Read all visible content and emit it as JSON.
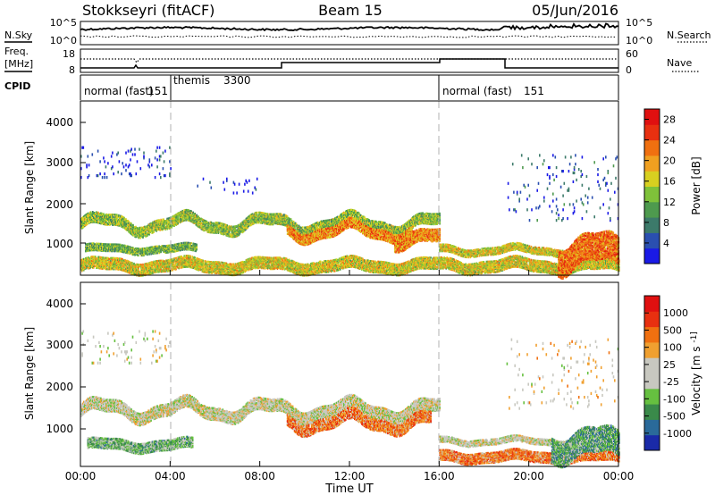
{
  "header": {
    "station": "Stokkseyri (fitACF)",
    "beam": "Beam 15",
    "date": "05/Jun/2016"
  },
  "noise_panel": {
    "left_label": "N.Sky",
    "right_label": "N.Search",
    "left_ticks": [
      "10^5",
      "10^0"
    ],
    "right_ticks": [
      "10^5",
      "10^0"
    ]
  },
  "freq_panel": {
    "left_label_1": "Freq.",
    "left_label_2": "[MHz]",
    "right_label": "Nave",
    "left_ticks": [
      "18",
      "8"
    ],
    "right_ticks": [
      "60",
      "0"
    ]
  },
  "cpid_panel": {
    "label": "CPID",
    "segments": [
      {
        "name": "normal (fast)",
        "id": "151",
        "start_hour": 0,
        "end_hour": 4
      },
      {
        "name": "themis",
        "id": "3300",
        "start_hour": 4,
        "end_hour": 16
      },
      {
        "name": "normal (fast)",
        "id": "151",
        "start_hour": 16,
        "end_hour": 24
      }
    ]
  },
  "axes": {
    "xlabel": "Time UT",
    "xticks": [
      "00:00",
      "04:00",
      "08:00",
      "12:00",
      "16:00",
      "20:00",
      "00:00"
    ],
    "ylabel": "Slant Range [km]",
    "yticks": [
      "1000",
      "2000",
      "3000",
      "4000"
    ]
  },
  "chart_data": [
    {
      "type": "heatmap",
      "title": "",
      "xlabel": "Time UT",
      "ylabel": "Slant Range [km]",
      "xlim_hours": [
        0,
        24
      ],
      "ylim": [
        180,
        4600
      ],
      "colorbar": {
        "label": "Power [dB]",
        "ticks": [
          "4",
          "8",
          "12",
          "16",
          "20",
          "24",
          "28"
        ],
        "range": [
          0,
          30
        ],
        "colors": [
          "#1a1ae6",
          "#2a4fb0",
          "#3c7a6a",
          "#4e9a4e",
          "#7fc23a",
          "#d8d020",
          "#f0a020",
          "#f07010",
          "#e83010",
          "#e01010"
        ]
      },
      "scatter_regions": [
        {
          "t0": 0.0,
          "t1": 4.0,
          "r0": 2700,
          "r1": 3500,
          "density": 0.06,
          "level": 0.1
        },
        {
          "t0": 5.0,
          "t1": 8.0,
          "r0": 2300,
          "r1": 2700,
          "density": 0.04,
          "level": 0.1
        },
        {
          "t0": 19.0,
          "t1": 24.0,
          "r0": 1600,
          "r1": 3300,
          "density": 0.03,
          "level": 0.15
        }
      ],
      "bands": [
        {
          "t0": 0.0,
          "t1": 16.0,
          "r_base": 1500,
          "width": 280,
          "wave": 180,
          "level": 0.45
        },
        {
          "t0": 0.2,
          "t1": 5.2,
          "r_base": 850,
          "width": 180,
          "wave": 60,
          "level": 0.4
        },
        {
          "t0": 0.0,
          "t1": 24.0,
          "r_base": 430,
          "width": 300,
          "wave": 90,
          "level": 0.55
        },
        {
          "t0": 9.2,
          "t1": 14.8,
          "r_base": 1300,
          "width": 250,
          "wave": 180,
          "level": 0.7
        },
        {
          "t0": 16.0,
          "t1": 21.5,
          "r_base": 820,
          "width": 180,
          "wave": 80,
          "level": 0.55
        },
        {
          "t0": 21.3,
          "t1": 24.0,
          "r_base": 750,
          "width": 700,
          "wave": 250,
          "level": 0.75
        },
        {
          "t0": 14.0,
          "t1": 16.0,
          "r_base": 1100,
          "width": 320,
          "wave": 150,
          "level": 0.7
        }
      ]
    },
    {
      "type": "heatmap",
      "title": "",
      "xlabel": "Time UT",
      "ylabel": "Slant Range [km]",
      "xlim_hours": [
        0,
        24
      ],
      "ylim": [
        180,
        4600
      ],
      "colorbar": {
        "label": "Velocity [m s^-1]",
        "ticks": [
          "1000",
          "500",
          "100",
          "25",
          "-25",
          "-100",
          "-500",
          "-1000"
        ],
        "colors": [
          "#1a2aa8",
          "#2a6a9a",
          "#3a8a4a",
          "#66c040",
          "#c8c8c0",
          "#c8c8c0",
          "#f0a030",
          "#f07010",
          "#e83010",
          "#e01010"
        ]
      },
      "scatter_regions": [
        {
          "t0": 0.0,
          "t1": 4.0,
          "r0": 2700,
          "r1": 3500,
          "density": 0.05,
          "level": 0.5
        },
        {
          "t0": 19.0,
          "t1": 24.0,
          "r0": 1600,
          "r1": 3300,
          "density": 0.03,
          "level": 0.55
        }
      ],
      "bands": [
        {
          "t0": 0.0,
          "t1": 16.0,
          "r_base": 1550,
          "width": 300,
          "wave": 180,
          "level": 0.5
        },
        {
          "t0": 0.3,
          "t1": 5.0,
          "r_base": 700,
          "width": 260,
          "wave": 70,
          "level": 0.35
        },
        {
          "t0": 9.2,
          "t1": 15.6,
          "r_base": 1250,
          "width": 270,
          "wave": 180,
          "level": 0.72
        },
        {
          "t0": 16.0,
          "t1": 24.0,
          "r_base": 420,
          "width": 260,
          "wave": 60,
          "level": 0.72
        },
        {
          "t0": 16.0,
          "t1": 22.0,
          "r_base": 800,
          "width": 150,
          "wave": 60,
          "level": 0.5
        },
        {
          "t0": 21.0,
          "t1": 24.0,
          "r_base": 700,
          "width": 600,
          "wave": 200,
          "level": 0.3
        }
      ]
    }
  ]
}
